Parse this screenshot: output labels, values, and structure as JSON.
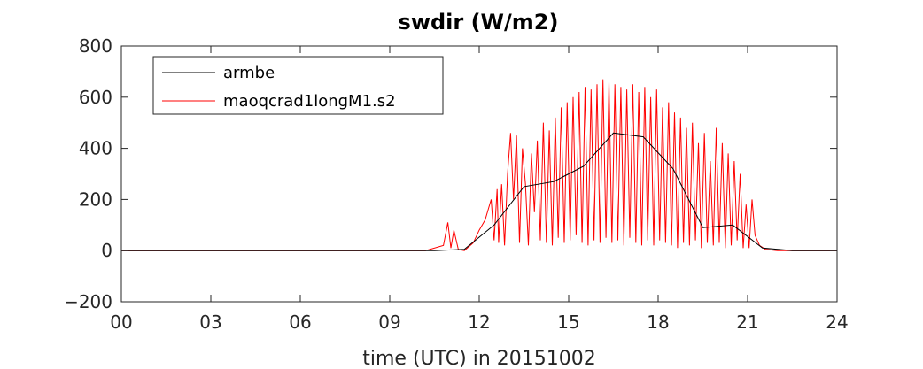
{
  "chart_data": {
    "type": "line",
    "title": "swdir  (W/m2)",
    "xlabel": "time (UTC) in 20151002",
    "ylabel": "",
    "xlim": [
      0,
      24
    ],
    "ylim": [
      -200,
      800
    ],
    "x_tick_labels": [
      "00",
      "03",
      "06",
      "09",
      "12",
      "15",
      "18",
      "21",
      "24"
    ],
    "y_ticks": [
      -200,
      0,
      200,
      400,
      600,
      800
    ],
    "y_tick_labels": [
      "−200",
      "0",
      "200",
      "400",
      "600",
      "800"
    ],
    "grid": false,
    "legend_placement": "top-left",
    "series": [
      {
        "name": "armbe",
        "color": "#000000",
        "x": [
          0,
          10.5,
          11.5,
          12.5,
          13.5,
          14.5,
          15.5,
          16.5,
          17.5,
          18.5,
          19.5,
          20.5,
          21.5,
          22.5,
          24
        ],
        "y": [
          0,
          0,
          5,
          100,
          250,
          270,
          330,
          460,
          445,
          320,
          90,
          100,
          10,
          0,
          0
        ]
      },
      {
        "name": "maoqcrad1longM1.s2",
        "color": "#ff0000",
        "x": [
          0,
          10.2,
          10.8,
          10.95,
          11.05,
          11.15,
          11.3,
          11.5,
          11.8,
          12.0,
          12.2,
          12.4,
          12.5,
          12.6,
          12.65,
          12.75,
          12.85,
          12.95,
          13.05,
          13.15,
          13.25,
          13.35,
          13.45,
          13.55,
          13.65,
          13.75,
          13.85,
          13.95,
          14.05,
          14.15,
          14.25,
          14.35,
          14.45,
          14.55,
          14.65,
          14.75,
          14.85,
          14.95,
          15.05,
          15.15,
          15.25,
          15.35,
          15.45,
          15.55,
          15.65,
          15.75,
          15.85,
          15.95,
          16.05,
          16.15,
          16.25,
          16.35,
          16.45,
          16.55,
          16.65,
          16.75,
          16.85,
          16.95,
          17.05,
          17.15,
          17.25,
          17.35,
          17.45,
          17.55,
          17.65,
          17.75,
          17.85,
          17.95,
          18.05,
          18.15,
          18.25,
          18.35,
          18.45,
          18.55,
          18.65,
          18.75,
          18.85,
          18.95,
          19.05,
          19.15,
          19.25,
          19.35,
          19.45,
          19.55,
          19.65,
          19.75,
          19.85,
          19.95,
          20.05,
          20.15,
          20.25,
          20.35,
          20.45,
          20.55,
          20.65,
          20.75,
          20.85,
          20.95,
          21.05,
          21.15,
          21.25,
          21.4,
          21.6,
          22.0,
          24
        ],
        "y": [
          0,
          0,
          20,
          110,
          10,
          80,
          5,
          0,
          30,
          80,
          120,
          200,
          40,
          240,
          30,
          260,
          20,
          300,
          460,
          200,
          450,
          30,
          400,
          260,
          20,
          380,
          150,
          430,
          40,
          500,
          30,
          470,
          20,
          520,
          50,
          560,
          30,
          580,
          40,
          600,
          60,
          620,
          30,
          640,
          20,
          630,
          40,
          650,
          30,
          670,
          50,
          660,
          30,
          650,
          40,
          640,
          20,
          630,
          50,
          650,
          30,
          620,
          20,
          640,
          40,
          600,
          20,
          630,
          40,
          560,
          30,
          580,
          20,
          540,
          10,
          520,
          30,
          480,
          20,
          500,
          40,
          420,
          10,
          460,
          30,
          350,
          20,
          480,
          30,
          420,
          10,
          380,
          20,
          350,
          40,
          300,
          10,
          180,
          10,
          200,
          60,
          20,
          5,
          0,
          0
        ]
      }
    ]
  }
}
